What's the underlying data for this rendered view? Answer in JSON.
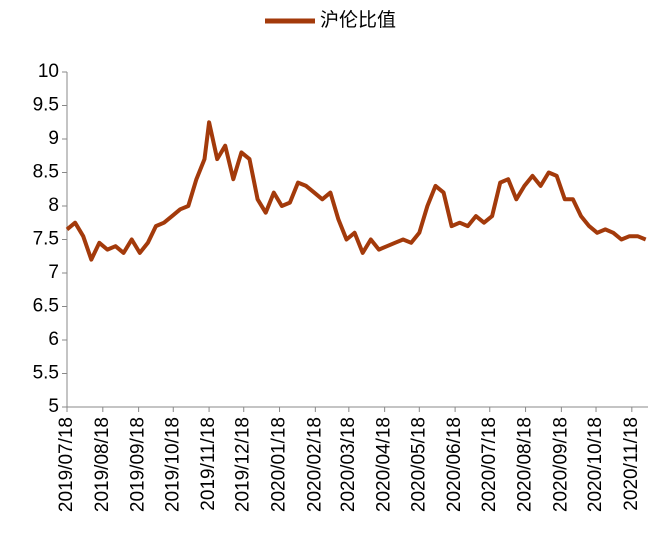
{
  "chart_data": {
    "type": "line",
    "series": [
      {
        "name": "沪伦比值",
        "color": "#a33a0b",
        "values": [
          7.65,
          7.75,
          7.55,
          7.2,
          7.45,
          7.35,
          7.4,
          7.3,
          7.5,
          7.3,
          7.45,
          7.7,
          7.75,
          7.85,
          7.95,
          8.0,
          8.4,
          8.7,
          9.25,
          8.7,
          8.9,
          8.4,
          8.8,
          8.7,
          8.1,
          7.9,
          8.2,
          8.0,
          8.05,
          8.35,
          8.3,
          8.2,
          8.1,
          8.2,
          7.8,
          7.5,
          7.6,
          7.3,
          7.5,
          7.35,
          7.4,
          7.45,
          7.5,
          7.45,
          7.6,
          8.0,
          8.3,
          8.2,
          7.7,
          7.75,
          7.7,
          7.85,
          7.75,
          7.85,
          8.35,
          8.4,
          8.1,
          8.3,
          8.45,
          8.3,
          8.5,
          8.45,
          8.1,
          8.1,
          7.85,
          7.7,
          7.6,
          7.65,
          7.6,
          7.5,
          7.55,
          7.55,
          7.5
        ]
      }
    ],
    "x": [
      "2019/07/18",
      "2019/07/25",
      "2019/08/01",
      "2019/08/08",
      "2019/08/15",
      "2019/08/22",
      "2019/08/29",
      "2019/09/05",
      "2019/09/12",
      "2019/09/19",
      "2019/09/26",
      "2019/10/03",
      "2019/10/10",
      "2019/10/17",
      "2019/10/24",
      "2019/10/31",
      "2019/11/07",
      "2019/11/14",
      "2019/11/18",
      "2019/11/25",
      "2019/12/02",
      "2019/12/09",
      "2019/12/16",
      "2019/12/23",
      "2019/12/30",
      "2020/01/06",
      "2020/01/13",
      "2020/01/20",
      "2020/01/27",
      "2020/02/03",
      "2020/02/10",
      "2020/02/17",
      "2020/02/24",
      "2020/03/02",
      "2020/03/09",
      "2020/03/16",
      "2020/03/23",
      "2020/03/30",
      "2020/04/06",
      "2020/04/13",
      "2020/04/20",
      "2020/04/27",
      "2020/05/04",
      "2020/05/11",
      "2020/05/18",
      "2020/05/25",
      "2020/06/01",
      "2020/06/08",
      "2020/06/15",
      "2020/06/22",
      "2020/06/29",
      "2020/07/06",
      "2020/07/13",
      "2020/07/20",
      "2020/07/27",
      "2020/08/03",
      "2020/08/10",
      "2020/08/17",
      "2020/08/24",
      "2020/08/31",
      "2020/09/07",
      "2020/09/14",
      "2020/09/21",
      "2020/09/28",
      "2020/10/05",
      "2020/10/12",
      "2020/10/19",
      "2020/10/26",
      "2020/11/02",
      "2020/11/09",
      "2020/11/16",
      "2020/11/23",
      "2020/11/30"
    ],
    "xlim": [
      "2019/07/18",
      "2020/12/02"
    ],
    "xticks": [
      "2019/07/18",
      "2019/08/18",
      "2019/09/18",
      "2019/10/18",
      "2019/11/18",
      "2019/12/18",
      "2020/01/18",
      "2020/02/18",
      "2020/03/18",
      "2020/04/18",
      "2020/05/18",
      "2020/06/18",
      "2020/07/18",
      "2020/08/18",
      "2020/09/18",
      "2020/10/18",
      "2020/11/18"
    ],
    "ylim": [
      5,
      10
    ],
    "yticks": [
      5,
      5.5,
      6,
      6.5,
      7,
      7.5,
      8,
      8.5,
      9,
      9.5,
      10
    ],
    "legend": "top"
  }
}
